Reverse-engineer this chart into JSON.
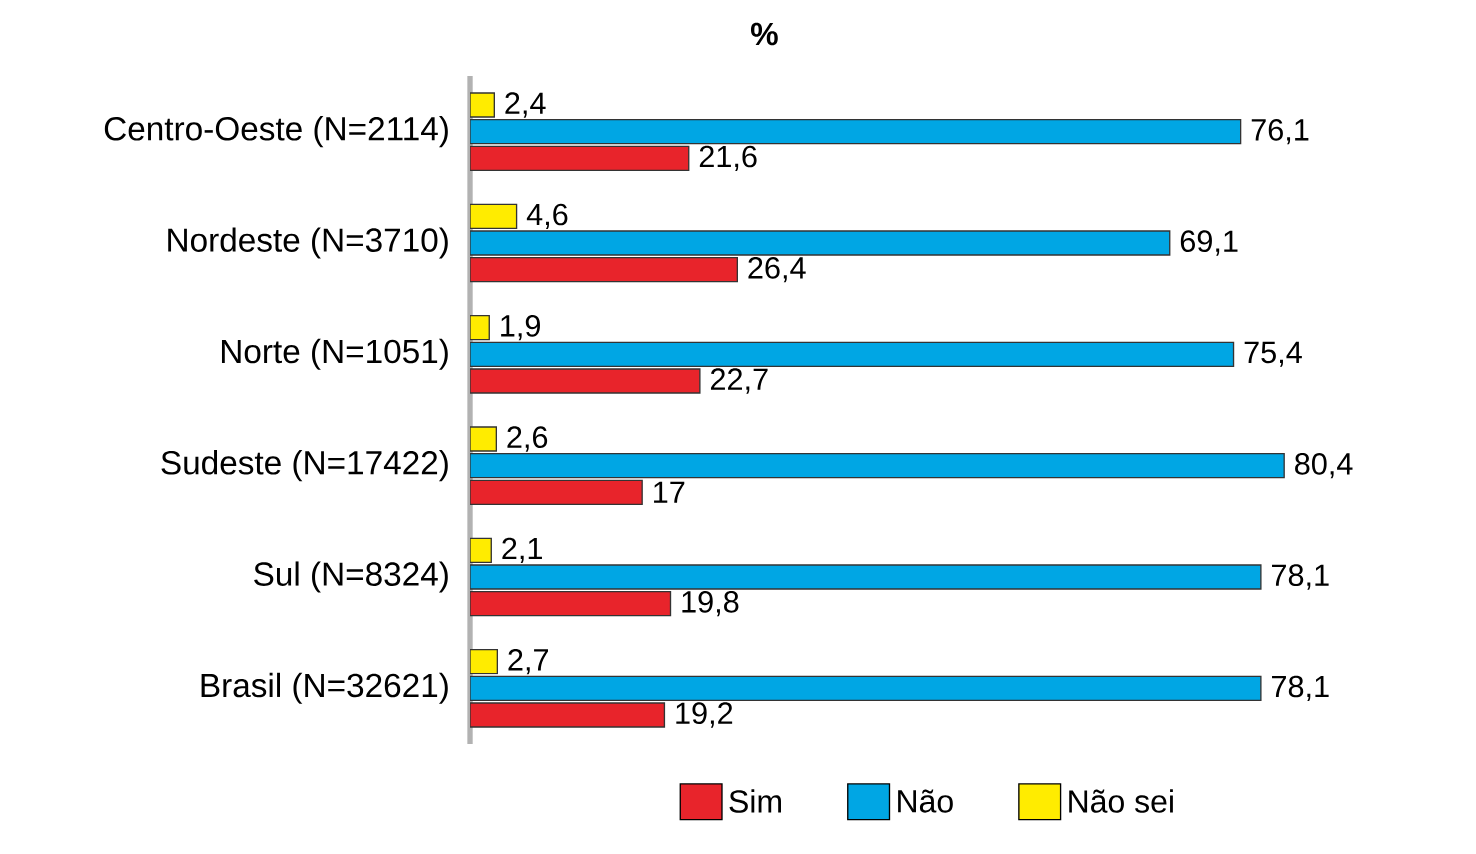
{
  "chart_data": {
    "type": "bar",
    "orientation": "horizontal",
    "title": "%",
    "categories": [
      "Centro-Oeste (N=2114)",
      "Nordeste (N=3710)",
      "Norte (N=1051)",
      "Sudeste (N=17422)",
      "Sul (N=8324)",
      "Brasil (N=32621)"
    ],
    "series": [
      {
        "name": "Sim",
        "color": "#e8242b",
        "values": [
          21.6,
          26.4,
          22.7,
          17,
          19.8,
          19.2
        ],
        "value_labels": [
          "21,6",
          "26,4",
          "22,7",
          "17",
          "19,8",
          "19,2"
        ]
      },
      {
        "name": "Não",
        "color": "#00a6e4",
        "values": [
          76.1,
          69.1,
          75.4,
          80.4,
          78.1,
          78.1
        ],
        "value_labels": [
          "76,1",
          "69,1",
          "75,4",
          "80,4",
          "78,1",
          "78,1"
        ]
      },
      {
        "name": "Não sei",
        "color": "#ffec00",
        "values": [
          2.4,
          4.6,
          1.9,
          2.6,
          2.1,
          2.7
        ],
        "value_labels": [
          "2,4",
          "4,6",
          "1,9",
          "2,6",
          "2,1",
          "2,7"
        ]
      }
    ],
    "legend": "bottom"
  }
}
